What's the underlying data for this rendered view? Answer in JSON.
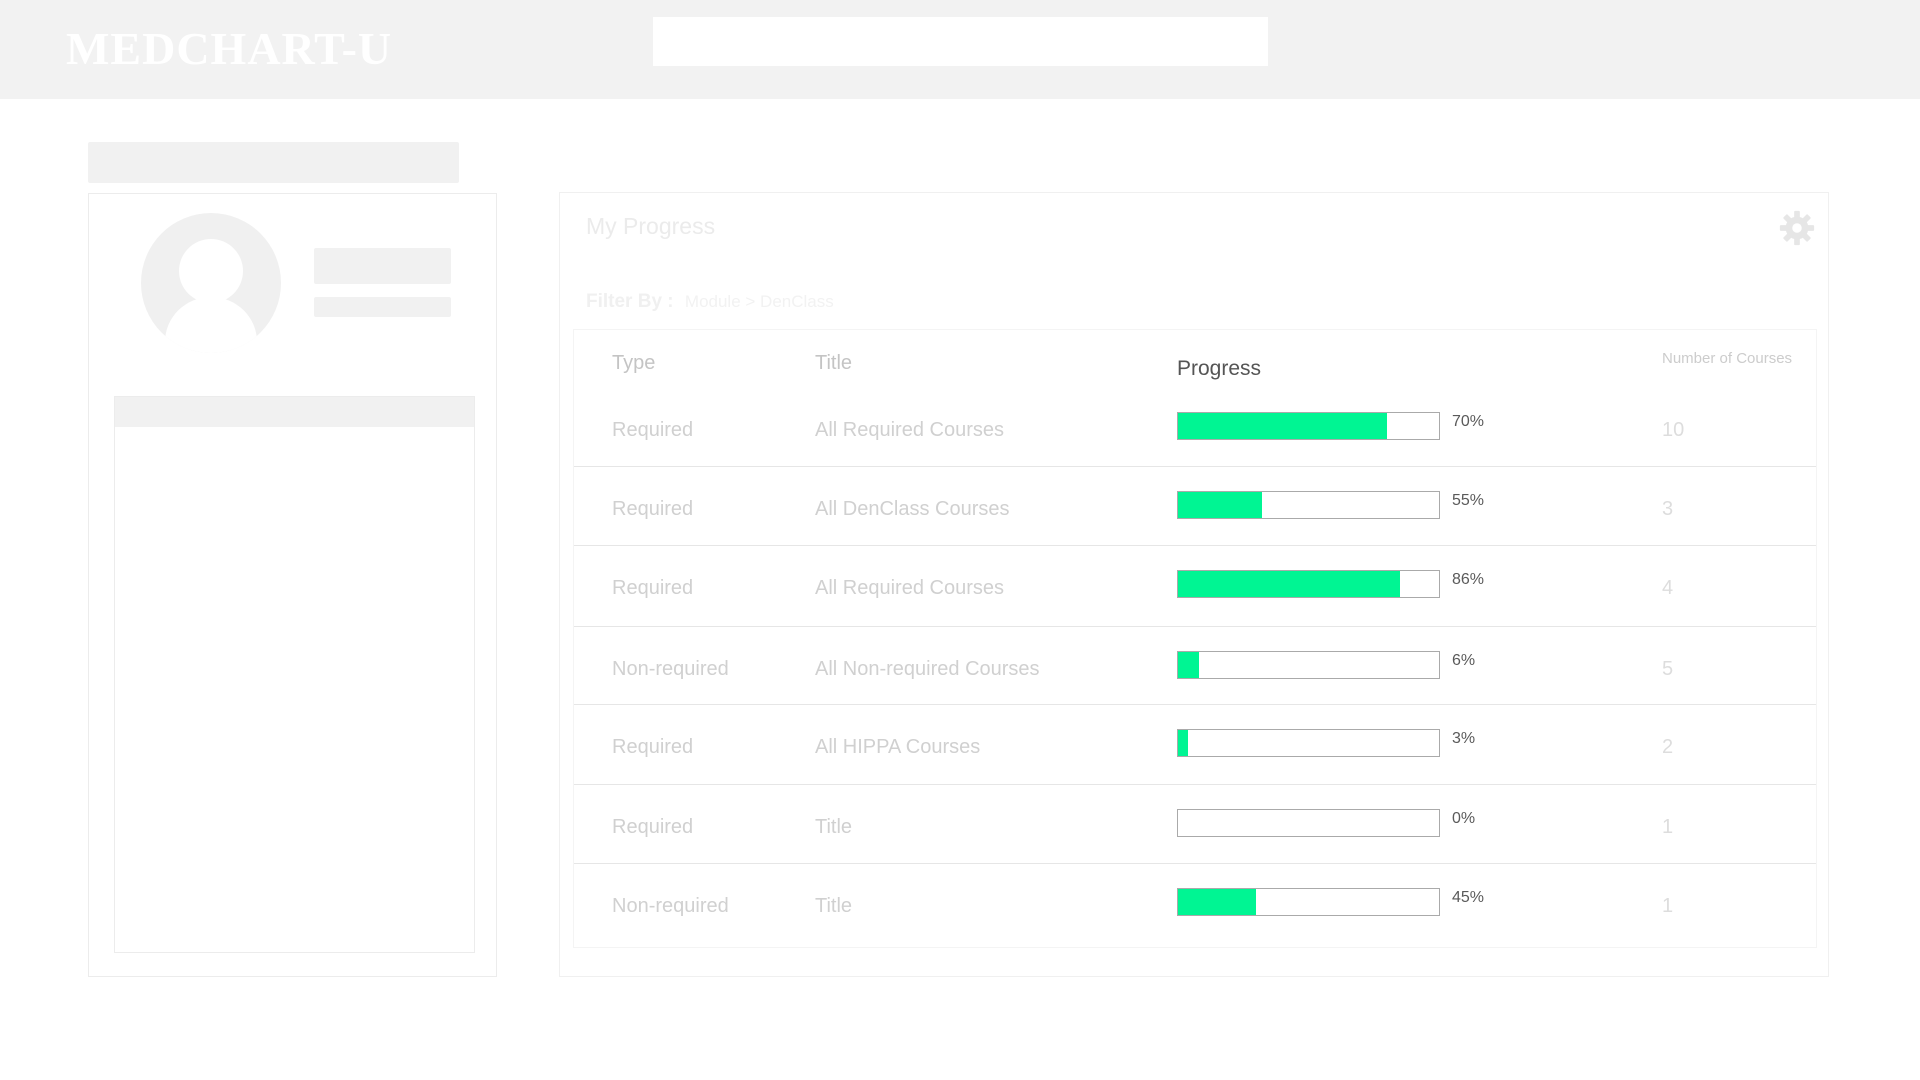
{
  "header": {
    "logo": "MEDCHART-U",
    "search": {
      "value": "",
      "placeholder": ""
    },
    "background": "#f2f2f2"
  },
  "profile": {
    "avatar_icon": "user-avatar-icon"
  },
  "progress": {
    "title": "My Progress",
    "settings_icon": "gear-icon",
    "filter": {
      "label": "Filter By :",
      "value": "Module > DenClass"
    },
    "columns": {
      "type": "Type",
      "title": "Title",
      "progress": "Progress",
      "count": "Number of Courses"
    },
    "accent_color": "#00f593",
    "rows": [
      {
        "type": "Required",
        "title": "All Required Courses",
        "progress": 70,
        "percent_label": "70%",
        "count": "10",
        "fill": 0.8
      },
      {
        "type": "Required",
        "title": "All DenClass Courses",
        "progress": 55,
        "percent_label": "55%",
        "count": "3",
        "fill": 0.32
      },
      {
        "type": "Required",
        "title": "All Required Courses",
        "progress": 86,
        "percent_label": "86%",
        "count": "4",
        "fill": 0.85
      },
      {
        "type": "Non-required",
        "title": "All Non-required Courses",
        "progress": 6,
        "percent_label": "6%",
        "count": "5",
        "fill": 0.08
      },
      {
        "type": "Required",
        "title": "All HIPPA Courses",
        "progress": 3,
        "percent_label": "3%",
        "count": "2",
        "fill": 0.04
      },
      {
        "type": "Required",
        "title": "Title",
        "progress": 0,
        "percent_label": "0%",
        "count": "1",
        "fill": 0
      },
      {
        "type": "Non-required",
        "title": "Title",
        "progress": 45,
        "percent_label": "45%",
        "count": "1",
        "fill": 0.3
      }
    ]
  }
}
